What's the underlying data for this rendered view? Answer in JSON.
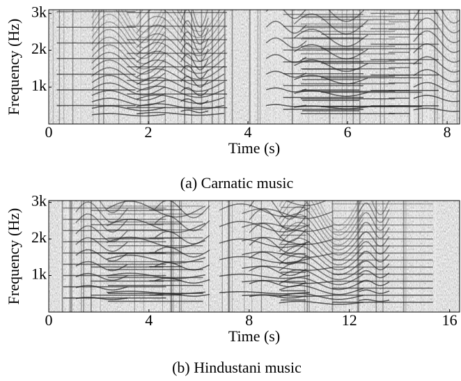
{
  "chart_data": [
    {
      "type": "spectrogram",
      "caption": "(a) Carnatic music",
      "x_label": "Time (s)",
      "y_label": "Frequency (Hz)",
      "xlim": [
        0,
        8.25
      ],
      "xticks": [
        0,
        2,
        4,
        6,
        8
      ],
      "ylim": [
        0,
        3100
      ],
      "yticks": [
        {
          "value": 1000,
          "label": "1k"
        },
        {
          "value": 2000,
          "label": "2k"
        },
        {
          "value": 3000,
          "label": "3k"
        }
      ]
    },
    {
      "type": "spectrogram",
      "caption": "(b) Hindustani music",
      "x_label": "Time (s)",
      "y_label": "Frequency (Hz)",
      "xlim": [
        0,
        16.4
      ],
      "xticks": [
        0,
        4,
        8,
        12,
        16
      ],
      "ylim": [
        0,
        3050
      ],
      "yticks": [
        {
          "value": 1000,
          "label": "1k"
        },
        {
          "value": 2000,
          "label": "2k"
        },
        {
          "value": 3000,
          "label": "3k"
        }
      ]
    }
  ]
}
